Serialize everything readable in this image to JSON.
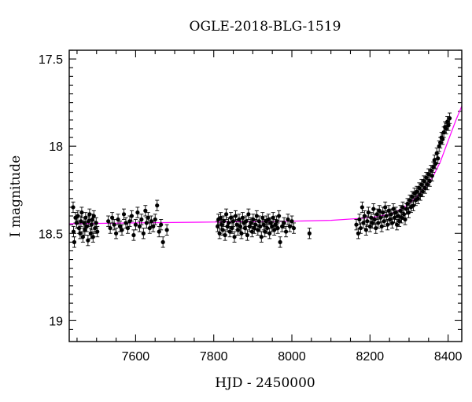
{
  "chart_data": {
    "type": "scatter",
    "title": "OGLE-2018-BLG-1519",
    "xlabel": "HJD - 2450000",
    "ylabel": "I magnitude",
    "xlim": [
      7430,
      8435
    ],
    "ylim": [
      19.12,
      17.45
    ],
    "y_inverted": true,
    "grid": false,
    "x_ticks": [
      {
        "value": 7600,
        "label": "7600"
      },
      {
        "value": 7800,
        "label": "7800"
      },
      {
        "value": 8000,
        "label": "8000"
      },
      {
        "value": 8200,
        "label": "8200"
      },
      {
        "value": 8400,
        "label": "8400"
      }
    ],
    "y_ticks": [
      {
        "value": 17.5,
        "label": "17.5"
      },
      {
        "value": 18,
        "label": "18"
      },
      {
        "value": 18.5,
        "label": "18.5"
      },
      {
        "value": 19,
        "label": "19"
      }
    ],
    "colors": {
      "data": "#000000",
      "model": "#ff00ff"
    },
    "series": [
      {
        "kind": "points_with_errorbars",
        "error": 0.03,
        "points": [
          [
            7440,
            18.35
          ],
          [
            7441,
            18.49
          ],
          [
            7443,
            18.55
          ],
          [
            7446,
            18.41
          ],
          [
            7449,
            18.44
          ],
          [
            7452,
            18.4
          ],
          [
            7455,
            18.47
          ],
          [
            7458,
            18.5
          ],
          [
            7460,
            18.43
          ],
          [
            7462,
            18.38
          ],
          [
            7465,
            18.52
          ],
          [
            7468,
            18.44
          ],
          [
            7470,
            18.48
          ],
          [
            7472,
            18.41
          ],
          [
            7475,
            18.46
          ],
          [
            7478,
            18.54
          ],
          [
            7480,
            18.43
          ],
          [
            7482,
            18.39
          ],
          [
            7485,
            18.5
          ],
          [
            7487,
            18.45
          ],
          [
            7489,
            18.42
          ],
          [
            7491,
            18.52
          ],
          [
            7493,
            18.4
          ],
          [
            7496,
            18.47
          ],
          [
            7499,
            18.44
          ],
          [
            7502,
            18.49
          ],
          [
            7530,
            18.43
          ],
          [
            7535,
            18.47
          ],
          [
            7540,
            18.41
          ],
          [
            7545,
            18.45
          ],
          [
            7550,
            18.5
          ],
          [
            7555,
            18.42
          ],
          [
            7560,
            18.46
          ],
          [
            7565,
            18.48
          ],
          [
            7570,
            18.39
          ],
          [
            7575,
            18.44
          ],
          [
            7580,
            18.47
          ],
          [
            7585,
            18.43
          ],
          [
            7590,
            18.4
          ],
          [
            7595,
            18.51
          ],
          [
            7600,
            18.45
          ],
          [
            7605,
            18.38
          ],
          [
            7610,
            18.46
          ],
          [
            7615,
            18.42
          ],
          [
            7620,
            18.5
          ],
          [
            7625,
            18.37
          ],
          [
            7628,
            18.44
          ],
          [
            7632,
            18.41
          ],
          [
            7636,
            18.47
          ],
          [
            7640,
            18.43
          ],
          [
            7645,
            18.46
          ],
          [
            7650,
            18.42
          ],
          [
            7655,
            18.34
          ],
          [
            7660,
            18.49
          ],
          [
            7665,
            18.45
          ],
          [
            7670,
            18.55
          ],
          [
            7680,
            18.48
          ],
          [
            7810,
            18.46
          ],
          [
            7812,
            18.42
          ],
          [
            7815,
            18.5
          ],
          [
            7818,
            18.41
          ],
          [
            7820,
            18.45
          ],
          [
            7823,
            18.48
          ],
          [
            7826,
            18.43
          ],
          [
            7829,
            18.51
          ],
          [
            7832,
            18.39
          ],
          [
            7835,
            18.46
          ],
          [
            7838,
            18.44
          ],
          [
            7841,
            18.49
          ],
          [
            7844,
            18.41
          ],
          [
            7847,
            18.47
          ],
          [
            7850,
            18.43
          ],
          [
            7853,
            18.52
          ],
          [
            7856,
            18.4
          ],
          [
            7859,
            18.45
          ],
          [
            7862,
            18.48
          ],
          [
            7865,
            18.42
          ],
          [
            7868,
            18.46
          ],
          [
            7871,
            18.5
          ],
          [
            7874,
            18.41
          ],
          [
            7877,
            18.44
          ],
          [
            7880,
            18.47
          ],
          [
            7883,
            18.43
          ],
          [
            7886,
            18.51
          ],
          [
            7889,
            18.39
          ],
          [
            7892,
            18.46
          ],
          [
            7895,
            18.44
          ],
          [
            7898,
            18.49
          ],
          [
            7901,
            18.42
          ],
          [
            7904,
            18.47
          ],
          [
            7907,
            18.45
          ],
          [
            7910,
            18.4
          ],
          [
            7913,
            18.48
          ],
          [
            7916,
            18.43
          ],
          [
            7919,
            18.46
          ],
          [
            7922,
            18.52
          ],
          [
            7925,
            18.41
          ],
          [
            7928,
            18.45
          ],
          [
            7931,
            18.49
          ],
          [
            7934,
            18.43
          ],
          [
            7937,
            18.47
          ],
          [
            7940,
            18.42
          ],
          [
            7943,
            18.5
          ],
          [
            7946,
            18.44
          ],
          [
            7949,
            18.46
          ],
          [
            7952,
            18.41
          ],
          [
            7955,
            18.48
          ],
          [
            7958,
            18.45
          ],
          [
            7961,
            18.43
          ],
          [
            7964,
            18.47
          ],
          [
            7967,
            18.4
          ],
          [
            7970,
            18.55
          ],
          [
            7975,
            18.46
          ],
          [
            7980,
            18.44
          ],
          [
            7985,
            18.49
          ],
          [
            7990,
            18.42
          ],
          [
            7995,
            18.46
          ],
          [
            8000,
            18.43
          ],
          [
            8005,
            18.47
          ],
          [
            8045,
            18.5
          ],
          [
            8165,
            18.45
          ],
          [
            8170,
            18.5
          ],
          [
            8173,
            18.42
          ],
          [
            8176,
            18.47
          ],
          [
            8180,
            18.35
          ],
          [
            8183,
            18.44
          ],
          [
            8186,
            18.4
          ],
          [
            8190,
            18.48
          ],
          [
            8193,
            18.43
          ],
          [
            8196,
            18.38
          ],
          [
            8200,
            18.46
          ],
          [
            8203,
            18.41
          ],
          [
            8206,
            18.44
          ],
          [
            8209,
            18.36
          ],
          [
            8212,
            18.42
          ],
          [
            8215,
            18.47
          ],
          [
            8218,
            18.39
          ],
          [
            8221,
            18.44
          ],
          [
            8224,
            18.37
          ],
          [
            8227,
            18.41
          ],
          [
            8230,
            18.46
          ],
          [
            8233,
            18.38
          ],
          [
            8236,
            18.43
          ],
          [
            8239,
            18.35
          ],
          [
            8242,
            18.4
          ],
          [
            8245,
            18.45
          ],
          [
            8248,
            18.37
          ],
          [
            8251,
            18.42
          ],
          [
            8254,
            18.39
          ],
          [
            8257,
            18.44
          ],
          [
            8260,
            18.36
          ],
          [
            8263,
            18.41
          ],
          [
            8266,
            18.38
          ],
          [
            8269,
            18.45
          ],
          [
            8272,
            18.4
          ],
          [
            8275,
            18.43
          ],
          [
            8278,
            18.37
          ],
          [
            8281,
            18.41
          ],
          [
            8284,
            18.35
          ],
          [
            8287,
            18.39
          ],
          [
            8290,
            18.42
          ],
          [
            8293,
            18.36
          ],
          [
            8296,
            18.33
          ],
          [
            8299,
            18.38
          ],
          [
            8302,
            18.31
          ],
          [
            8305,
            18.35
          ],
          [
            8308,
            18.29
          ],
          [
            8311,
            18.34
          ],
          [
            8314,
            18.27
          ],
          [
            8317,
            18.31
          ],
          [
            8320,
            18.26
          ],
          [
            8323,
            18.3
          ],
          [
            8326,
            18.24
          ],
          [
            8329,
            18.28
          ],
          [
            8332,
            18.22
          ],
          [
            8335,
            18.26
          ],
          [
            8338,
            18.2
          ],
          [
            8341,
            18.24
          ],
          [
            8344,
            18.18
          ],
          [
            8347,
            18.22
          ],
          [
            8350,
            18.16
          ],
          [
            8353,
            18.2
          ],
          [
            8356,
            18.14
          ],
          [
            8359,
            18.17
          ],
          [
            8362,
            18.12
          ],
          [
            8365,
            18.08
          ],
          [
            8368,
            18.1
          ],
          [
            8371,
            18.04
          ],
          [
            8374,
            18.07
          ],
          [
            8377,
            18.0
          ],
          [
            8380,
            17.98
          ],
          [
            8383,
            17.95
          ],
          [
            8386,
            17.96
          ],
          [
            8389,
            17.92
          ],
          [
            8392,
            17.89
          ],
          [
            8395,
            17.9
          ],
          [
            8398,
            17.86
          ],
          [
            8401,
            17.88
          ],
          [
            8404,
            17.84
          ]
        ]
      },
      {
        "kind": "model_curve",
        "points": [
          [
            7430,
            18.445
          ],
          [
            7600,
            18.44
          ],
          [
            7800,
            18.435
          ],
          [
            8000,
            18.43
          ],
          [
            8100,
            18.425
          ],
          [
            8200,
            18.41
          ],
          [
            8250,
            18.39
          ],
          [
            8280,
            18.36
          ],
          [
            8300,
            18.33
          ],
          [
            8320,
            18.29
          ],
          [
            8340,
            18.24
          ],
          [
            8360,
            18.18
          ],
          [
            8380,
            18.09
          ],
          [
            8400,
            17.97
          ],
          [
            8420,
            17.85
          ],
          [
            8435,
            17.77
          ]
        ]
      }
    ]
  }
}
